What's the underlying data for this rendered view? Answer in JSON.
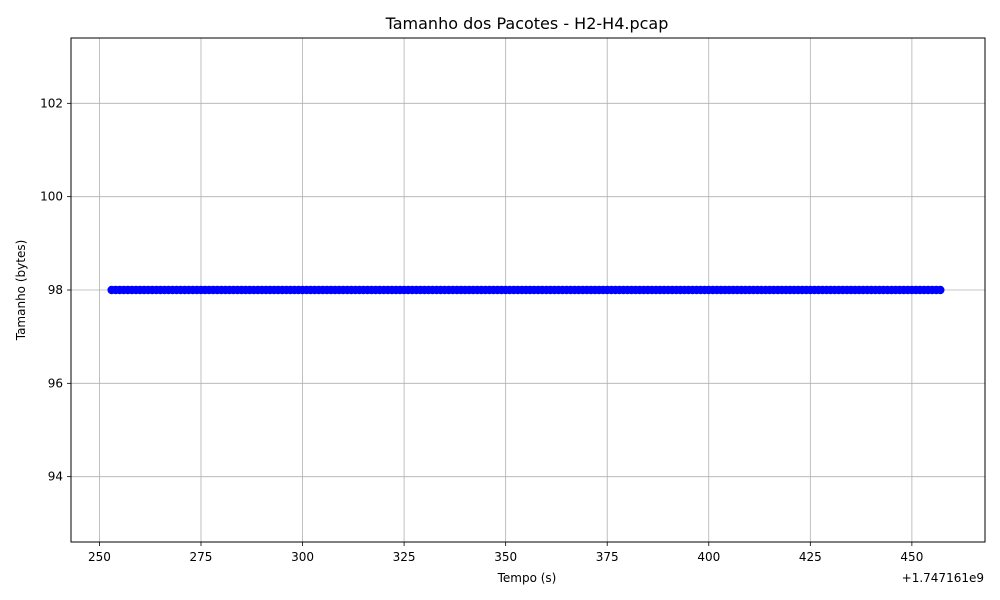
{
  "chart_data": {
    "type": "scatter",
    "title": "Tamanho dos Pacotes - H2-H4.pcap",
    "xlabel": "Tempo (s)",
    "ylabel": "Tamanho (bytes)",
    "x_offset_label": "+1.747161e9",
    "xlim": [
      243,
      468
    ],
    "ylim": [
      92.6,
      103.4
    ],
    "x_ticks": [
      250,
      275,
      300,
      325,
      350,
      375,
      400,
      425,
      450
    ],
    "x_tick_labels": [
      "250",
      "275",
      "300",
      "325",
      "350",
      "375",
      "400",
      "425",
      "450"
    ],
    "y_ticks": [
      94,
      96,
      98,
      100,
      102
    ],
    "y_tick_labels": [
      "94",
      "96",
      "98",
      "100",
      "102"
    ],
    "grid": true,
    "marker_color": "#0000ff",
    "series": [
      {
        "x_start": 253,
        "x_end": 457,
        "x_step": 1,
        "y": 98
      }
    ]
  }
}
